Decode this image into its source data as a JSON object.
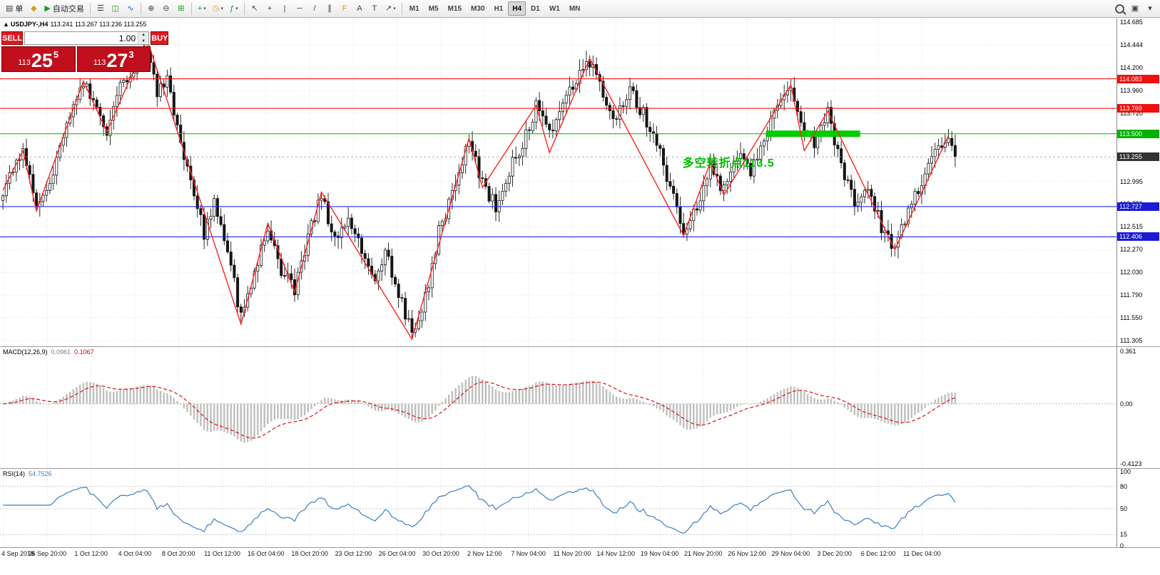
{
  "toolbar": {
    "order_label": "单",
    "autotrade_label": "自动交易",
    "timeframes": [
      "M1",
      "M5",
      "M15",
      "M30",
      "H1",
      "H4",
      "D1",
      "W1",
      "MN"
    ],
    "active_timeframe": "H4"
  },
  "icons": {
    "collapse": "▲",
    "order_doc": "▤",
    "metaquotes": "◆",
    "play": "▶",
    "bar_chart": "☰",
    "candlestick": "◫",
    "line_chart": "∿",
    "zoom_in": "⊕",
    "zoom_out": "⊖",
    "tile_windows": "⊞",
    "new_chart": "+",
    "profiles": "◷",
    "indicators": "ƒ",
    "cursor": "↖",
    "crosshair": "+",
    "vline": "|",
    "hline": "─",
    "trendline": "/",
    "channel": "∥",
    "fibonacci": "F",
    "text": "A",
    "text_label": "T",
    "arrows": "↗",
    "dropdown": "▾",
    "spin_up": "▲",
    "spin_down": "▼",
    "windows": "▣",
    "menu": "▾"
  },
  "chart": {
    "title": "USDJPY-,H4",
    "ohlc": "113.241 113.267 113.236 113.255"
  },
  "trade_panel": {
    "sell_label": "SELL",
    "buy_label": "BUY",
    "volume": "1.00",
    "sell_price": {
      "prefix": "113",
      "big": "25",
      "sup": "5"
    },
    "buy_price": {
      "prefix": "113",
      "big": "27",
      "sup": "3"
    }
  },
  "price_axis": {
    "labels": [
      "114.685",
      "114.444",
      "114.200",
      "113.960",
      "113.720",
      "113.475",
      "113.235",
      "112.995",
      "112.755",
      "112.515",
      "112.270",
      "112.030",
      "111.790",
      "111.550",
      "111.305"
    ],
    "current_label": "113.255"
  },
  "macd_panel": {
    "label": "MACD(12,26,9)",
    "value_main": "0.0961",
    "value_signal": "0.1067",
    "axis_top": "0.361",
    "axis_zero": "0.00",
    "axis_bottom": "-0.4123"
  },
  "rsi_panel": {
    "label": "RSI(14)",
    "value": "54.7526",
    "axis": [
      "100",
      "80",
      "50",
      "15",
      "0"
    ]
  },
  "time_axis": {
    "labels": [
      "4 Sep 2018",
      "26 Sep 20:00",
      "1 Oct 12:00",
      "4 Oct 04:00",
      "8 Oct 20:00",
      "11 Oct 12:00",
      "16 Oct 04:00",
      "18 Oct 20:00",
      "23 Oct 12:00",
      "26 Oct 04:00",
      "30 Oct 20:00",
      "2 Nov 12:00",
      "7 Nov 04:00",
      "11 Nov 20:00",
      "14 Nov 12:00",
      "19 Nov 04:00",
      "21 Nov 20:00",
      "26 Nov 12:00",
      "29 Nov 04:00",
      "3 Dec 20:00",
      "6 Dec 12:00",
      "11 Dec 04:00"
    ]
  },
  "chart_data": {
    "type": "candlestick",
    "symbol": "USDJPY-",
    "timeframe": "H4",
    "open": "113.241",
    "high": "113.267",
    "low": "113.236",
    "close": "113.255",
    "ylim": [
      111.305,
      114.685
    ],
    "n_candles": 285,
    "candle_spacing_px": 4.7,
    "current_price": 113.255,
    "price_path": [
      [
        0,
        112.9
      ],
      [
        6,
        113.32
      ],
      [
        10,
        112.7
      ],
      [
        14,
        112.97
      ],
      [
        19,
        113.65
      ],
      [
        24,
        114.05
      ],
      [
        28,
        113.75
      ],
      [
        31,
        113.55
      ],
      [
        35,
        114.0
      ],
      [
        39,
        114.2
      ],
      [
        43,
        114.42
      ],
      [
        46,
        113.95
      ],
      [
        49,
        114.1
      ],
      [
        53,
        113.4
      ],
      [
        57,
        112.8
      ],
      [
        60,
        112.45
      ],
      [
        63,
        112.75
      ],
      [
        67,
        112.3
      ],
      [
        71,
        111.55
      ],
      [
        75,
        112.05
      ],
      [
        79,
        112.52
      ],
      [
        83,
        112.05
      ],
      [
        87,
        111.85
      ],
      [
        91,
        112.4
      ],
      [
        95,
        112.85
      ],
      [
        99,
        112.35
      ],
      [
        103,
        112.6
      ],
      [
        107,
        112.3
      ],
      [
        111,
        111.95
      ],
      [
        114,
        112.3
      ],
      [
        118,
        111.8
      ],
      [
        122,
        111.4
      ],
      [
        126,
        111.75
      ],
      [
        130,
        112.45
      ],
      [
        134,
        112.85
      ],
      [
        139,
        113.42
      ],
      [
        143,
        112.98
      ],
      [
        147,
        112.72
      ],
      [
        151,
        113.1
      ],
      [
        155,
        113.4
      ],
      [
        159,
        113.78
      ],
      [
        163,
        113.52
      ],
      [
        167,
        113.85
      ],
      [
        171,
        114.05
      ],
      [
        175,
        114.28
      ],
      [
        179,
        113.95
      ],
      [
        183,
        113.65
      ],
      [
        187,
        113.95
      ],
      [
        191,
        113.72
      ],
      [
        195,
        113.4
      ],
      [
        199,
        112.95
      ],
      [
        203,
        112.48
      ],
      [
        207,
        112.72
      ],
      [
        211,
        113.18
      ],
      [
        215,
        112.9
      ],
      [
        219,
        113.28
      ],
      [
        223,
        113.08
      ],
      [
        227,
        113.48
      ],
      [
        231,
        113.8
      ],
      [
        235,
        114.0
      ],
      [
        238,
        113.55
      ],
      [
        242,
        113.38
      ],
      [
        246,
        113.72
      ],
      [
        250,
        113.15
      ],
      [
        254,
        112.78
      ],
      [
        258,
        112.98
      ],
      [
        262,
        112.5
      ],
      [
        266,
        112.3
      ],
      [
        270,
        112.72
      ],
      [
        274,
        112.95
      ],
      [
        278,
        113.28
      ],
      [
        282,
        113.42
      ],
      [
        284,
        113.255
      ]
    ],
    "zigzag_line": {
      "color": "#ff2222",
      "points": [
        [
          0,
          112.9
        ],
        [
          6,
          113.32
        ],
        [
          10,
          112.68
        ],
        [
          24,
          114.06
        ],
        [
          31,
          113.52
        ],
        [
          43,
          114.5
        ],
        [
          71,
          111.48
        ],
        [
          79,
          112.55
        ],
        [
          87,
          111.82
        ],
        [
          95,
          112.88
        ],
        [
          122,
          111.32
        ],
        [
          139,
          113.45
        ],
        [
          143,
          112.93
        ],
        [
          159,
          113.8
        ],
        [
          163,
          113.3
        ],
        [
          175,
          114.3
        ],
        [
          203,
          112.42
        ],
        [
          211,
          113.2
        ],
        [
          215,
          112.85
        ],
        [
          235,
          114.02
        ],
        [
          239,
          113.32
        ],
        [
          246,
          113.74
        ],
        [
          266,
          112.27
        ],
        [
          282,
          113.48
        ]
      ]
    },
    "hlines": [
      {
        "price": 114.083,
        "color": "#f31212",
        "badge": "114.083",
        "badge_bg": "#ef0f0f"
      },
      {
        "price": 113.769,
        "color": "#f31212",
        "badge": "113.769",
        "badge_bg": "#ef0f0f"
      },
      {
        "price": 113.5,
        "color": "#00cc00",
        "badge": "113.500",
        "badge_bg": "#00b300"
      },
      {
        "price": 112.727,
        "color": "#2424e8",
        "badge": "112.727",
        "badge_bg": "#1b1bd6"
      },
      {
        "price": 112.406,
        "color": "#2424e8",
        "badge": "112.406",
        "badge_bg": "#1b1bd6"
      }
    ],
    "green_zone": {
      "from_index": 228,
      "to_index": 256,
      "price": 113.5,
      "thickness_px": 9,
      "color": "#00cc00"
    },
    "annotation": {
      "text": "多空转折点113.5",
      "color": "#00bb00",
      "index": 203,
      "price": 113.28
    },
    "macd": {
      "params": [
        12,
        26,
        9
      ],
      "scale_max": 0.361,
      "scale_min": -0.4123,
      "histogram_color": "#bfbfbf",
      "signal_color": "#e01010"
    },
    "rsi": {
      "period": 14,
      "levels": [
        80,
        50,
        15
      ],
      "line_color": "#3e7fc1"
    }
  }
}
